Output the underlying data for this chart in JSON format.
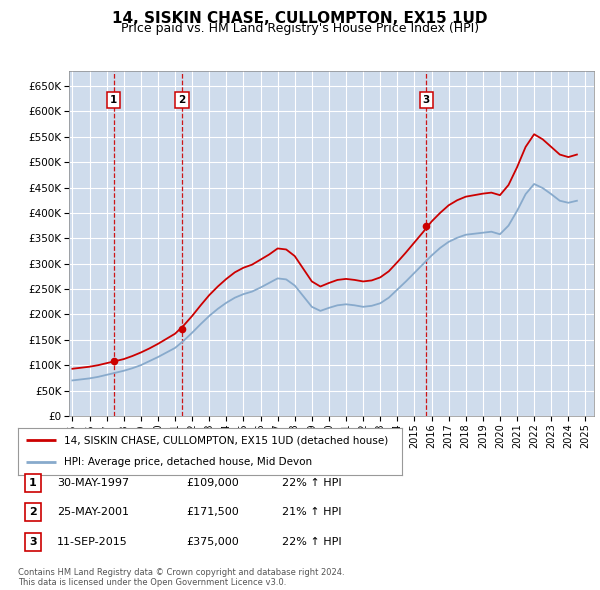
{
  "title": "14, SISKIN CHASE, CULLOMPTON, EX15 1UD",
  "subtitle": "Price paid vs. HM Land Registry's House Price Index (HPI)",
  "title_fontsize": 11,
  "subtitle_fontsize": 9,
  "ylabel_ticks": [
    "£0",
    "£50K",
    "£100K",
    "£150K",
    "£200K",
    "£250K",
    "£300K",
    "£350K",
    "£400K",
    "£450K",
    "£500K",
    "£550K",
    "£600K",
    "£650K"
  ],
  "ytick_values": [
    0,
    50000,
    100000,
    150000,
    200000,
    250000,
    300000,
    350000,
    400000,
    450000,
    500000,
    550000,
    600000,
    650000
  ],
  "ylim": [
    0,
    680000
  ],
  "xlim_start": 1994.8,
  "xlim_end": 2025.5,
  "plot_bg_color": "#cfdcec",
  "grid_color": "#ffffff",
  "red_line_color": "#cc0000",
  "blue_line_color": "#88aacc",
  "sale_marker_color": "#cc0000",
  "dashed_line_color": "#cc0000",
  "transactions": [
    {
      "num": 1,
      "year": 1997.41,
      "price": 109000,
      "label": "1"
    },
    {
      "num": 2,
      "year": 2001.41,
      "price": 171500,
      "label": "2"
    },
    {
      "num": 3,
      "year": 2015.7,
      "price": 375000,
      "label": "3"
    }
  ],
  "legend_line1": "14, SISKIN CHASE, CULLOMPTON, EX15 1UD (detached house)",
  "legend_line2": "HPI: Average price, detached house, Mid Devon",
  "table_rows": [
    [
      "1",
      "30-MAY-1997",
      "£109,000",
      "22% ↑ HPI"
    ],
    [
      "2",
      "25-MAY-2001",
      "£171,500",
      "21% ↑ HPI"
    ],
    [
      "3",
      "11-SEP-2015",
      "£375,000",
      "22% ↑ HPI"
    ]
  ],
  "footnote": "Contains HM Land Registry data © Crown copyright and database right 2024.\nThis data is licensed under the Open Government Licence v3.0.",
  "hpi_red_x": [
    1995.0,
    1995.5,
    1996.0,
    1996.5,
    1997.0,
    1997.5,
    1998.0,
    1998.5,
    1999.0,
    1999.5,
    2000.0,
    2000.5,
    2001.0,
    2001.5,
    2002.0,
    2002.5,
    2003.0,
    2003.5,
    2004.0,
    2004.5,
    2005.0,
    2005.5,
    2006.0,
    2006.5,
    2007.0,
    2007.5,
    2008.0,
    2008.5,
    2009.0,
    2009.5,
    2010.0,
    2010.5,
    2011.0,
    2011.5,
    2012.0,
    2012.5,
    2013.0,
    2013.5,
    2014.0,
    2014.5,
    2015.0,
    2015.5,
    2016.0,
    2016.5,
    2017.0,
    2017.5,
    2018.0,
    2018.5,
    2019.0,
    2019.5,
    2020.0,
    2020.5,
    2021.0,
    2021.5,
    2022.0,
    2022.5,
    2023.0,
    2023.5,
    2024.0,
    2024.5
  ],
  "hpi_red_y": [
    93000,
    95000,
    97000,
    100000,
    104000,
    108000,
    112000,
    118000,
    125000,
    133000,
    142000,
    152000,
    162000,
    178000,
    197000,
    218000,
    238000,
    255000,
    270000,
    283000,
    292000,
    298000,
    308000,
    318000,
    330000,
    328000,
    315000,
    290000,
    265000,
    255000,
    262000,
    268000,
    270000,
    268000,
    265000,
    267000,
    273000,
    285000,
    303000,
    322000,
    342000,
    362000,
    383000,
    400000,
    415000,
    425000,
    432000,
    435000,
    438000,
    440000,
    435000,
    455000,
    490000,
    530000,
    555000,
    545000,
    530000,
    515000,
    510000,
    515000
  ],
  "hpi_blue_x": [
    1995.0,
    1995.5,
    1996.0,
    1996.5,
    1997.0,
    1997.5,
    1998.0,
    1998.5,
    1999.0,
    1999.5,
    2000.0,
    2000.5,
    2001.0,
    2001.5,
    2002.0,
    2002.5,
    2003.0,
    2003.5,
    2004.0,
    2004.5,
    2005.0,
    2005.5,
    2006.0,
    2006.5,
    2007.0,
    2007.5,
    2008.0,
    2008.5,
    2009.0,
    2009.5,
    2010.0,
    2010.5,
    2011.0,
    2011.5,
    2012.0,
    2012.5,
    2013.0,
    2013.5,
    2014.0,
    2014.5,
    2015.0,
    2015.5,
    2016.0,
    2016.5,
    2017.0,
    2017.5,
    2018.0,
    2018.5,
    2019.0,
    2019.5,
    2020.0,
    2020.5,
    2021.0,
    2021.5,
    2022.0,
    2022.5,
    2023.0,
    2023.5,
    2024.0,
    2024.5
  ],
  "hpi_blue_y": [
    70000,
    72000,
    74000,
    77000,
    81000,
    85000,
    89000,
    94000,
    100000,
    108000,
    116000,
    125000,
    134000,
    148000,
    164000,
    181000,
    197000,
    211000,
    223000,
    233000,
    240000,
    245000,
    253000,
    262000,
    271000,
    269000,
    257000,
    236000,
    215000,
    207000,
    213000,
    218000,
    220000,
    218000,
    215000,
    217000,
    222000,
    233000,
    249000,
    265000,
    282000,
    299000,
    316000,
    331000,
    343000,
    351000,
    357000,
    359000,
    361000,
    363000,
    358000,
    375000,
    404000,
    437000,
    457000,
    449000,
    437000,
    424000,
    420000,
    424000
  ]
}
